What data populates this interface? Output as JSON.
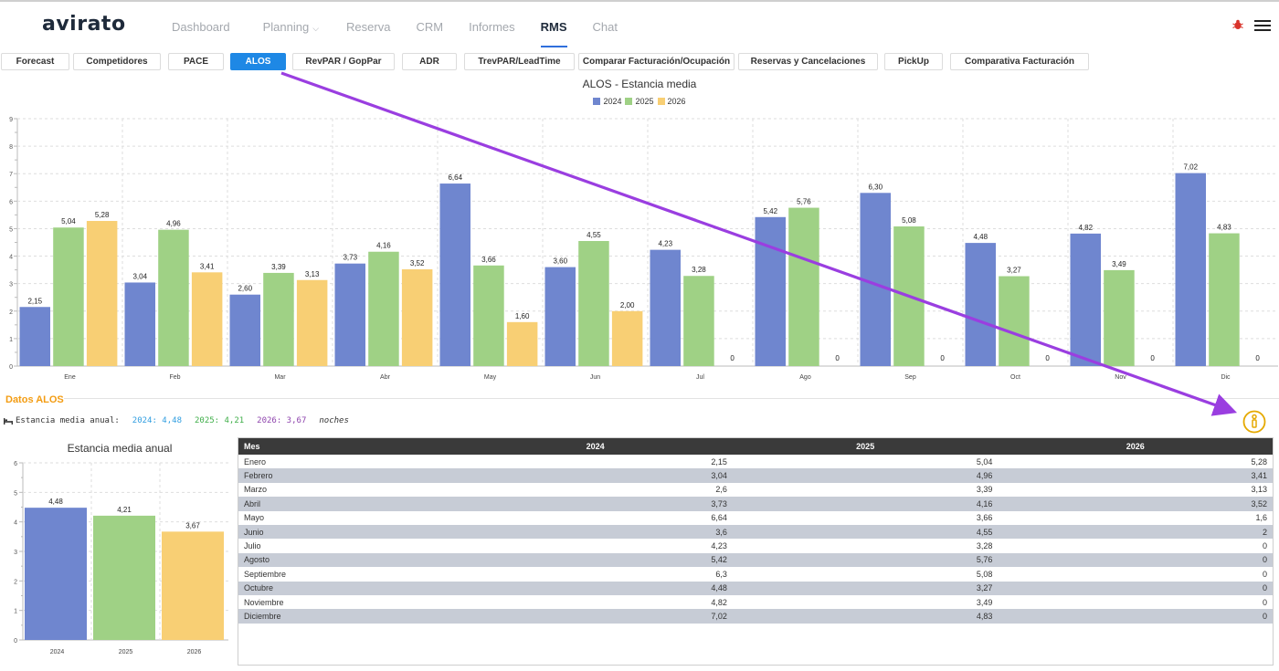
{
  "app": {
    "logo": "avirato",
    "nav": [
      {
        "label": "Dashboard",
        "active": false,
        "caret": false
      },
      {
        "label": "Planning",
        "active": false,
        "caret": true
      },
      {
        "label": "Reserva",
        "active": false,
        "caret": false
      },
      {
        "label": "CRM",
        "active": false,
        "caret": false
      },
      {
        "label": "Informes",
        "active": false,
        "caret": false
      },
      {
        "label": "RMS",
        "active": true,
        "caret": false
      },
      {
        "label": "Chat",
        "active": false,
        "caret": false
      }
    ]
  },
  "tabs": [
    {
      "label": "Forecast",
      "active": false
    },
    {
      "label": "Competidores",
      "active": false
    },
    {
      "label": "PACE",
      "active": false
    },
    {
      "label": "ALOS",
      "active": true
    },
    {
      "label": "RevPAR / GopPar",
      "active": false
    },
    {
      "label": "ADR",
      "active": false
    },
    {
      "label": "TrevPAR/LeadTime",
      "active": false
    },
    {
      "label": "Comparar Facturación/Ocupación",
      "active": false
    },
    {
      "label": "Reservas y  Cancelaciones",
      "active": false
    },
    {
      "label": "PickUp",
      "active": false
    },
    {
      "label": "Comparativa Facturación",
      "active": false
    }
  ],
  "colors": {
    "y2024": "#6f86cf",
    "y2025": "#9fd185",
    "y2026": "#f8cf74",
    "accent": "#1e88e5",
    "orange": "#f39c12",
    "arrow": "#9a3ee0"
  },
  "chart_data": [
    {
      "type": "bar",
      "title": "ALOS - Estancia media",
      "categories": [
        "Ene",
        "Feb",
        "Mar",
        "Abr",
        "May",
        "Jun",
        "Jul",
        "Ago",
        "Sep",
        "Oct",
        "Nov",
        "Dic"
      ],
      "series": [
        {
          "name": "2024",
          "color": "#6f86cf",
          "values": [
            2.15,
            3.04,
            2.6,
            3.73,
            6.64,
            3.6,
            4.23,
            5.42,
            6.3,
            4.48,
            4.82,
            7.02
          ],
          "labels": [
            "2,15",
            "3,04",
            "2,60",
            "3,73",
            "6,64",
            "3,60",
            "4,23",
            "5,42",
            "6,30",
            "4,48",
            "4,82",
            "7,02"
          ]
        },
        {
          "name": "2025",
          "color": "#9fd185",
          "values": [
            5.04,
            4.96,
            3.39,
            4.16,
            3.66,
            4.55,
            3.28,
            5.76,
            5.08,
            3.27,
            3.49,
            4.83
          ],
          "labels": [
            "5,04",
            "4,96",
            "3,39",
            "4,16",
            "3,66",
            "4,55",
            "3,28",
            "5,76",
            "5,08",
            "3,27",
            "3,49",
            "4,83"
          ]
        },
        {
          "name": "2026",
          "color": "#f8cf74",
          "values": [
            5.28,
            3.41,
            3.13,
            3.52,
            1.6,
            2.0,
            0,
            0,
            0,
            0,
            0,
            0
          ],
          "labels": [
            "5,28",
            "3,41",
            "3,13",
            "3,52",
            "1,60",
            "2,00",
            "0",
            "0",
            "0",
            "0",
            "0",
            "0"
          ]
        }
      ],
      "yticks": [
        "0",
        "1",
        "2",
        "3",
        "4",
        "5",
        "6",
        "7",
        "8",
        "9"
      ],
      "ylim": [
        0,
        9
      ],
      "legend": "top",
      "grid": true
    },
    {
      "type": "bar",
      "title": "Estancia media anual",
      "categories": [
        "2024",
        "2025",
        "2026"
      ],
      "values": [
        4.48,
        4.21,
        3.67
      ],
      "labels": [
        "4,48",
        "4,21",
        "3,67"
      ],
      "colors": [
        "#6f86cf",
        "#9fd185",
        "#f8cf74"
      ],
      "yticks": [
        "0",
        "1",
        "2",
        "3",
        "4",
        "5",
        "6"
      ],
      "ylim": [
        0,
        6
      ],
      "grid": true
    }
  ],
  "datos": {
    "title": "Datos ALOS",
    "label": "Estancia media anual:",
    "v2024": "2024: 4,48",
    "v2025": "2025: 4,21",
    "v2026": "2026: 3,67",
    "unit": "noches"
  },
  "table": {
    "headers": [
      "Mes",
      "2024",
      "2025",
      "2026"
    ],
    "rows": [
      [
        "Enero",
        "2,15",
        "5,04",
        "5,28"
      ],
      [
        "Febrero",
        "3,04",
        "4,96",
        "3,41"
      ],
      [
        "Marzo",
        "2,6",
        "3,39",
        "3,13"
      ],
      [
        "Abril",
        "3,73",
        "4,16",
        "3,52"
      ],
      [
        "Mayo",
        "6,64",
        "3,66",
        "1,6"
      ],
      [
        "Junio",
        "3,6",
        "4,55",
        "2"
      ],
      [
        "Julio",
        "4,23",
        "3,28",
        "0"
      ],
      [
        "Agosto",
        "5,42",
        "5,76",
        "0"
      ],
      [
        "Septiembre",
        "6,3",
        "5,08",
        "0"
      ],
      [
        "Octubre",
        "4,48",
        "3,27",
        "0"
      ],
      [
        "Noviembre",
        "4,82",
        "3,49",
        "0"
      ],
      [
        "Diciembre",
        "7,02",
        "4,83",
        "0"
      ]
    ]
  },
  "icons": {
    "info": "info-icon",
    "bug": "bug-icon",
    "menu": "hamburger-menu-icon",
    "bed": "bed-icon"
  }
}
